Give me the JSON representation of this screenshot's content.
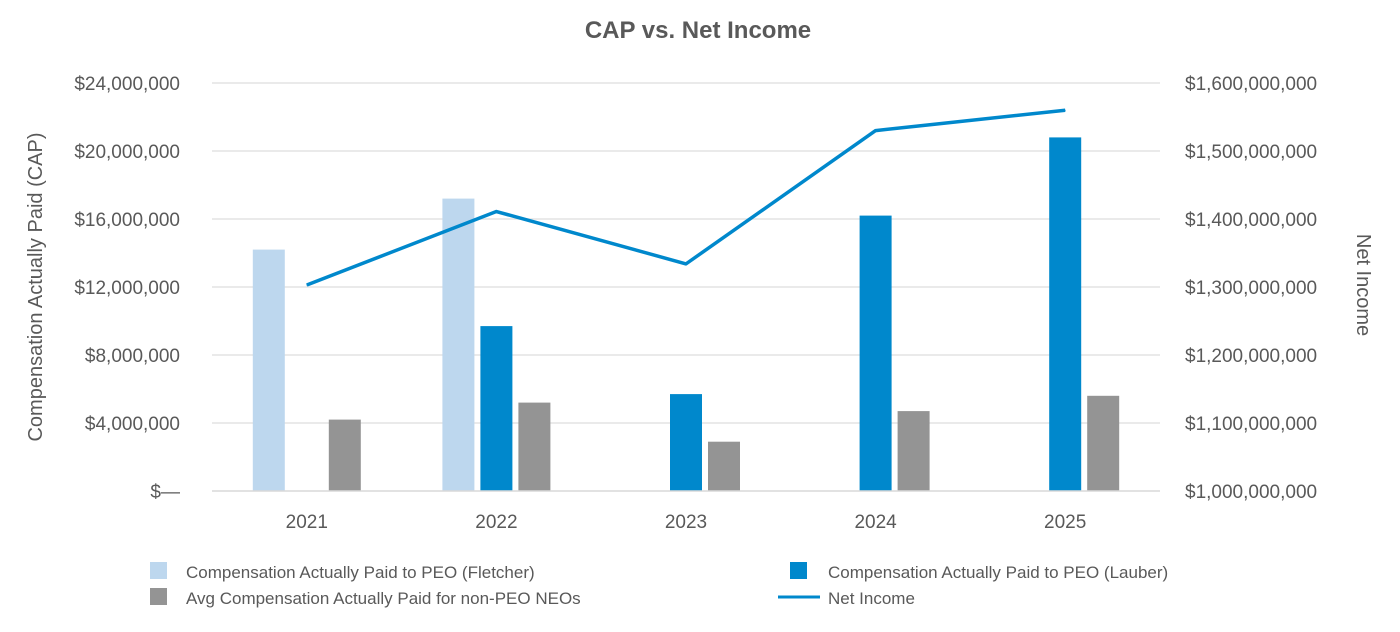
{
  "chart_data": {
    "type": "bar",
    "title": "CAP vs. Net Income",
    "categories": [
      "2021",
      "2022",
      "2023",
      "2024",
      "2025"
    ],
    "ylabel": "Compensation Actually Paid (CAP)",
    "y2label": "Net Income",
    "ylim": [
      0,
      24000000
    ],
    "y2lim": [
      1000000000,
      1600000000
    ],
    "y_ticks": [
      "$—",
      "$4,000,000",
      "$8,000,000",
      "$12,000,000",
      "$16,000,000",
      "$20,000,000",
      "$24,000,000"
    ],
    "y_tick_values": [
      0,
      4000000,
      8000000,
      12000000,
      16000000,
      20000000,
      24000000
    ],
    "y2_ticks": [
      "$1,000,000,000",
      "$1,100,000,000",
      "$1,200,000,000",
      "$1,300,000,000",
      "$1,400,000,000",
      "$1,500,000,000",
      "$1,600,000,000"
    ],
    "y2_tick_values": [
      1000000000,
      1100000000,
      1200000000,
      1300000000,
      1400000000,
      1500000000,
      1600000000
    ],
    "grid": true,
    "legend_position": "bottom",
    "series": [
      {
        "name": "Compensation Actually Paid to PEO (Fletcher)",
        "kind": "bar",
        "axis": "left",
        "color": "#bdd7ee",
        "values": [
          14200000,
          17200000,
          null,
          null,
          null
        ]
      },
      {
        "name": "Compensation Actually Paid to PEO (Lauber)",
        "kind": "bar",
        "axis": "left",
        "color": "#0088cc",
        "values": [
          null,
          9700000,
          5700000,
          16200000,
          20800000
        ]
      },
      {
        "name": "Avg Compensation Actually Paid for non-PEO NEOs",
        "kind": "bar",
        "axis": "left",
        "color": "#949494",
        "values": [
          4200000,
          5200000,
          2900000,
          4700000,
          5600000
        ]
      },
      {
        "name": "Net Income",
        "kind": "line",
        "axis": "right",
        "color": "#0088cc",
        "values": [
          1303000000,
          1411000000,
          1334000000,
          1530000000,
          1560000000
        ]
      }
    ]
  }
}
